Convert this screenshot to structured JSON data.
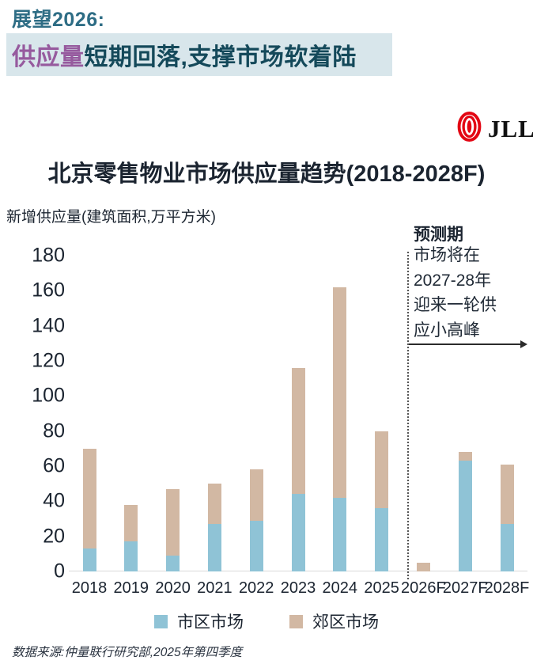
{
  "header": {
    "kicker": "展望2026:",
    "headline_highlight": "供应量",
    "headline_rest": "短期回落,支撑市场软着陆",
    "highlight_bg": "#D8E6EB",
    "highlight_text_color": "#965A9E",
    "headline_text_color": "#14495A",
    "kicker_color": "#2E6D85"
  },
  "logo": {
    "text": "JLL",
    "mark": "jll-globe-icon",
    "brand_red": "#E30613"
  },
  "chart": {
    "title": "北京零售物业市场供应量趋势(2018-2028F)",
    "axis_unit_label": "新增供应量(建筑面积,万平方米)",
    "annotation": {
      "label": "预测期",
      "lines": [
        "市场将在",
        "2027-28年",
        "迎来一轮供",
        "应小高峰"
      ]
    }
  },
  "chart_data": {
    "type": "bar",
    "stacked": true,
    "title": "北京零售物业市场供应量趋势(2018-2028F)",
    "ylabel": "新增供应量(建筑面积,万平方米)",
    "categories": [
      "2018",
      "2019",
      "2020",
      "2021",
      "2022",
      "2023",
      "2024",
      "2025",
      "2026F",
      "2027F",
      "2028F"
    ],
    "series": [
      {
        "name": "市区市场",
        "color": "#8FC3D6",
        "values": [
          13,
          17,
          9,
          27,
          29,
          44,
          42,
          36,
          0,
          63,
          27
        ]
      },
      {
        "name": "郊区市场",
        "color": "#D2B8A3",
        "values": [
          57,
          21,
          38,
          23,
          29,
          72,
          120,
          44,
          5,
          5,
          34
        ]
      }
    ],
    "totals": [
      70,
      38,
      47,
      50,
      58,
      116,
      162,
      80,
      5,
      68,
      61
    ],
    "ylim": [
      0,
      180
    ],
    "yticks": [
      0,
      20,
      40,
      60,
      80,
      100,
      120,
      140,
      160,
      180
    ],
    "grid": false,
    "legend_position": "bottom",
    "forecast_categories": [
      "2026F",
      "2027F",
      "2028F"
    ],
    "forecast_divider_after": "2025"
  },
  "source": "数据来源:仲量联行研究部,2025年第四季度",
  "colors": {
    "title_text": "#1B2430",
    "axis_text": "#1B2433",
    "baseline": "#D9D9D9",
    "divider": "#555555",
    "arrow": "#2B2B2B",
    "urban_blue": "#8FC3D6",
    "suburban_tan": "#D2B8A3"
  }
}
